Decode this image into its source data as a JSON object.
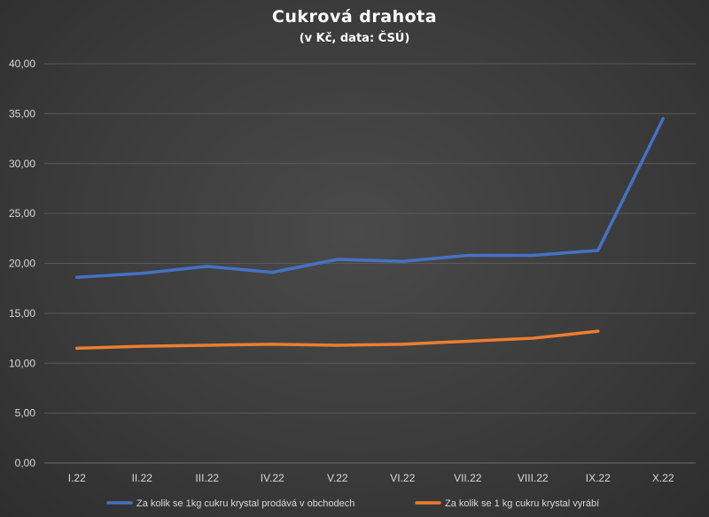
{
  "chart_data": {
    "type": "line",
    "title": "Cukrová drahota",
    "subtitle": "(v Kč, data: ČSÚ)",
    "categories": [
      "I.22",
      "II.22",
      "III.22",
      "IV.22",
      "V.22",
      "VI.22",
      "VII.22",
      "VIII.22",
      "IX.22",
      "X.22"
    ],
    "series": [
      {
        "name": "Za kolik se 1kg cukru krystal prodává v obchodech",
        "color": "#4472c4",
        "values": [
          18.6,
          19.0,
          19.7,
          19.1,
          20.4,
          20.2,
          20.8,
          20.8,
          21.3,
          34.5
        ]
      },
      {
        "name": "Za kolik se 1 kg cukru krystal vyrábí",
        "color": "#ed7d31",
        "values": [
          11.5,
          11.7,
          11.8,
          11.9,
          11.8,
          11.9,
          12.2,
          12.5,
          13.2,
          null
        ]
      }
    ],
    "ylim": [
      0,
      40
    ],
    "yticks": [
      "0,00",
      "5,00",
      "10,00",
      "15,00",
      "20,00",
      "25,00",
      "30,00",
      "35,00",
      "40,00"
    ],
    "grid": true,
    "legend_position": "bottom"
  }
}
